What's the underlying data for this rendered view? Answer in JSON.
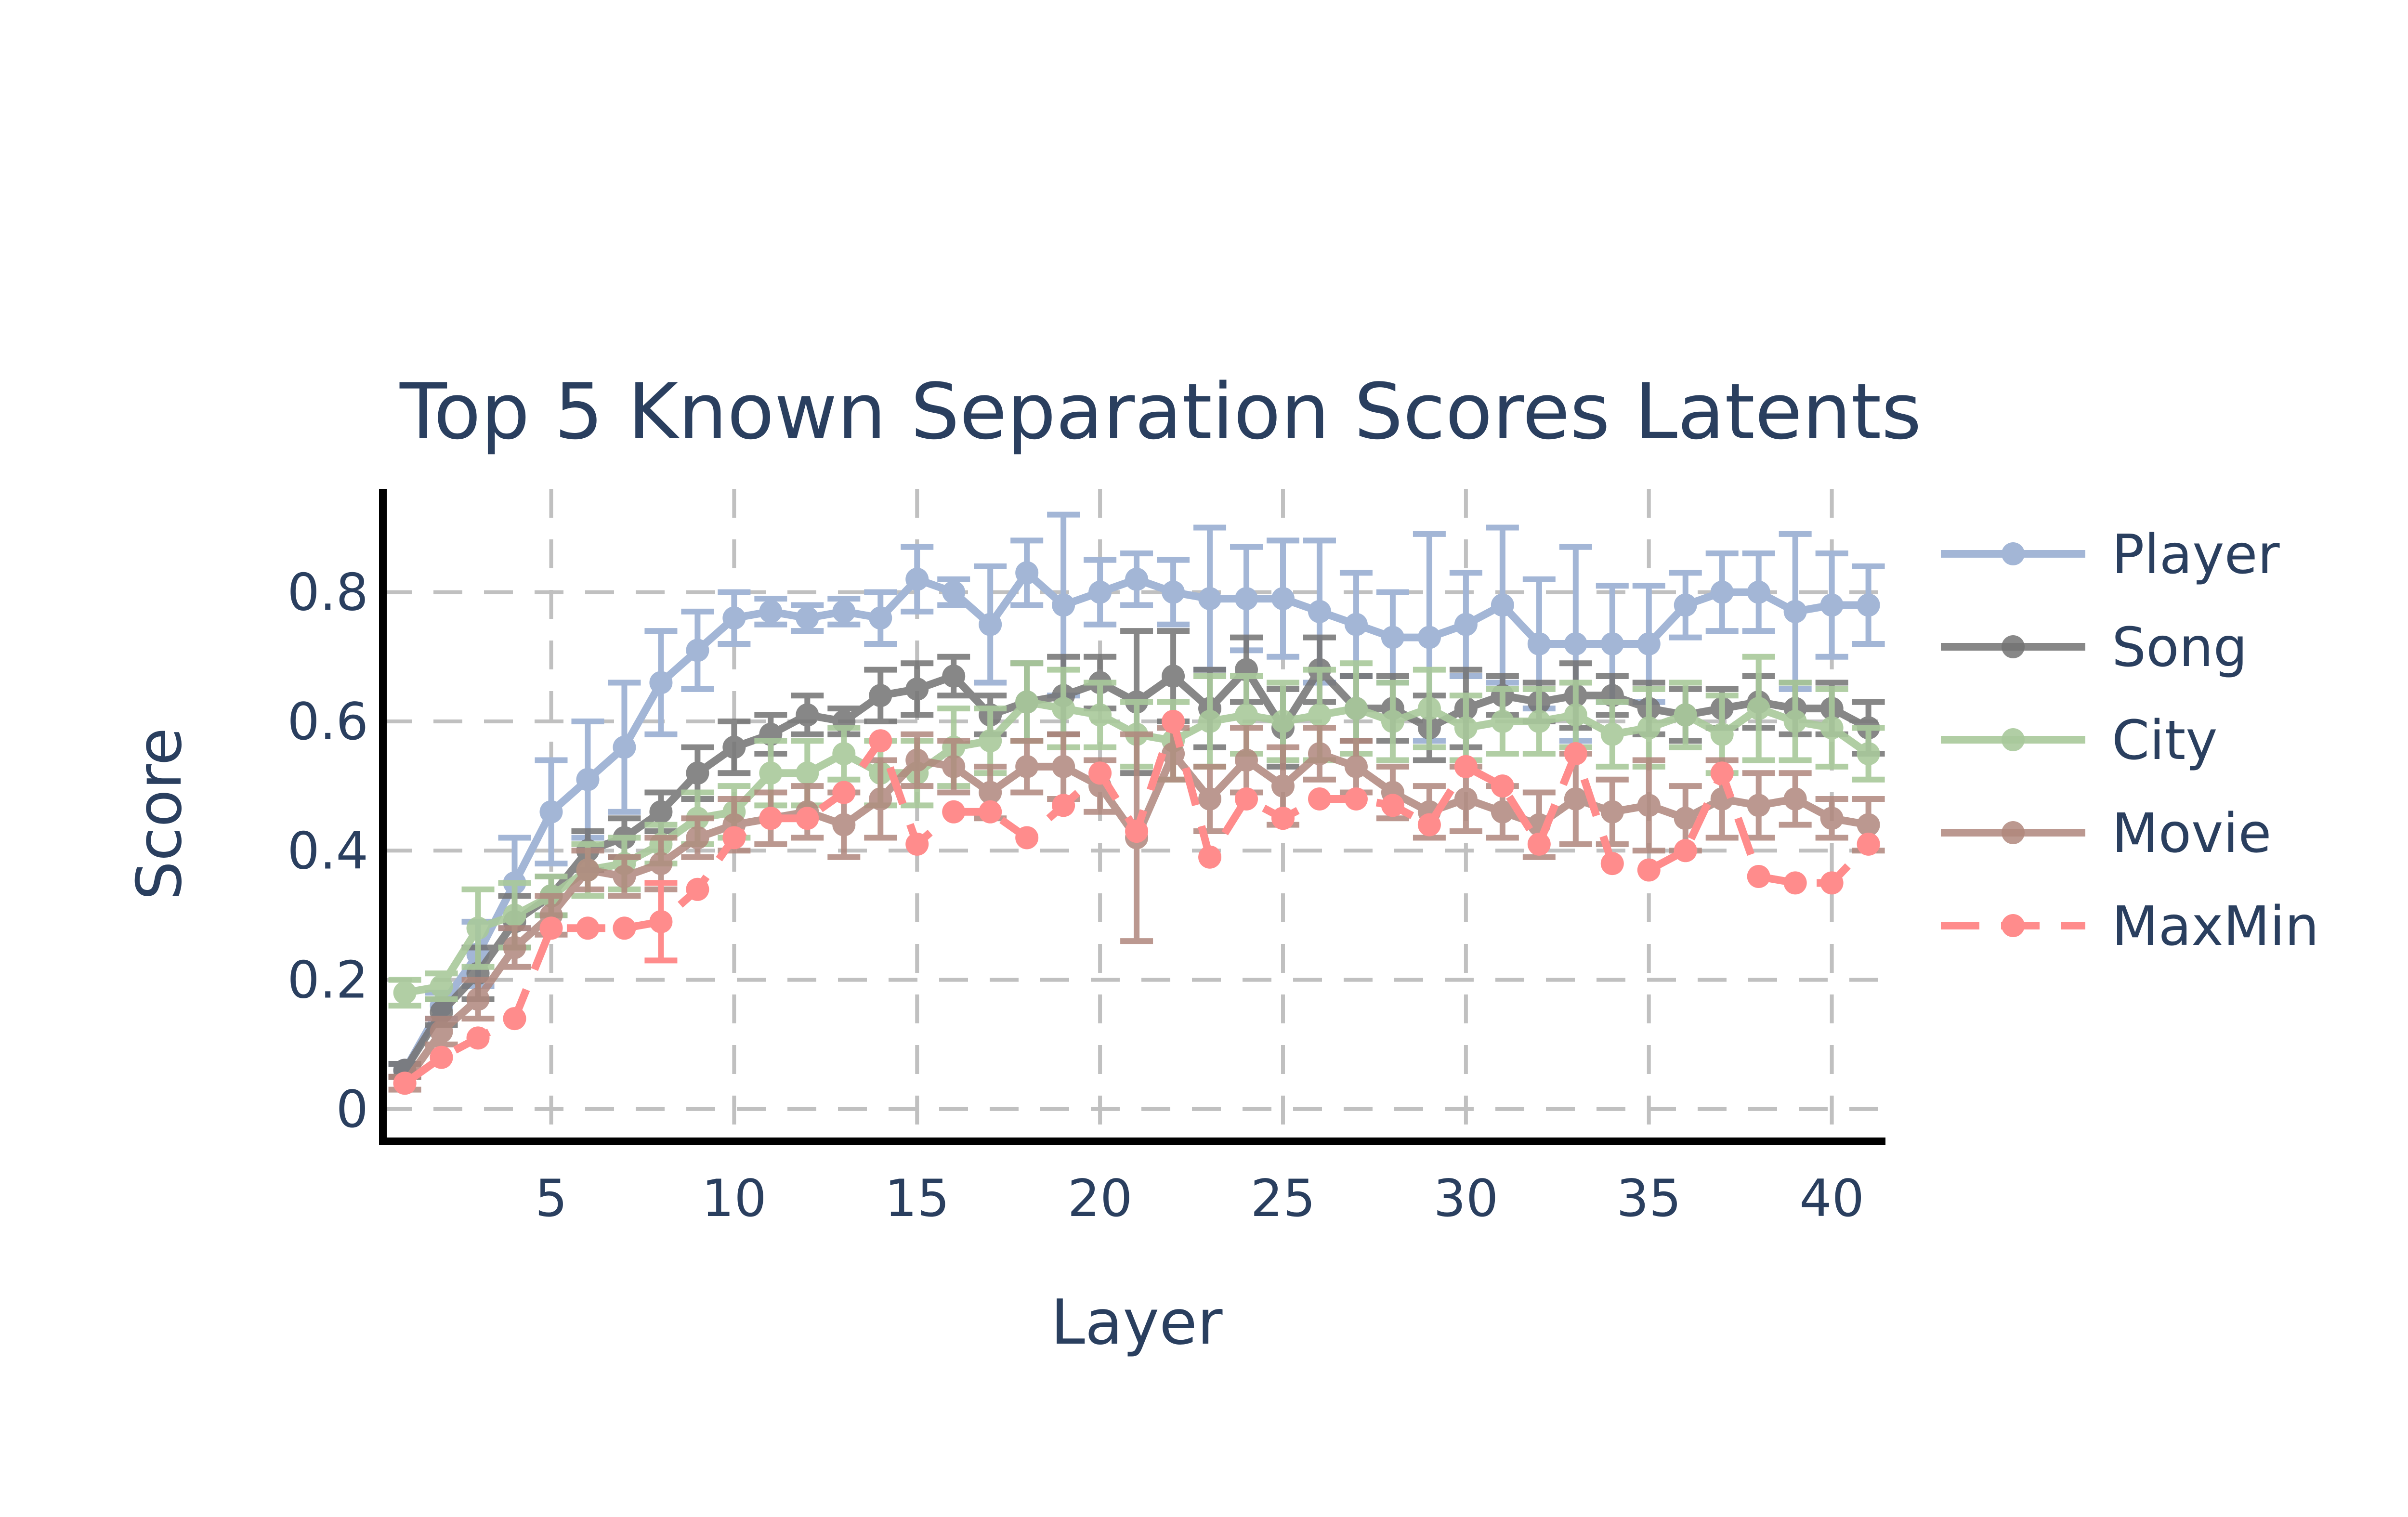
{
  "chart_data": {
    "type": "line",
    "title": "Top 5 Known Separation Scores Latents",
    "xlabel": "Layer",
    "ylabel": "Score",
    "xlim": [
      0.4,
      41.4
    ],
    "ylim": [
      -0.05,
      0.96
    ],
    "xticks": [
      5,
      10,
      15,
      20,
      25,
      30,
      35,
      40
    ],
    "xtick_labels": [
      "5",
      "10",
      "15",
      "20",
      "25",
      "30",
      "35",
      "40"
    ],
    "yticks": [
      0,
      0.2,
      0.4,
      0.6,
      0.8
    ],
    "ytick_labels": [
      "0",
      "0.2",
      "0.4",
      "0.6",
      "0.8"
    ],
    "grid": true,
    "legend": "right",
    "x": [
      1,
      2,
      3,
      4,
      5,
      6,
      7,
      8,
      9,
      10,
      11,
      12,
      13,
      14,
      15,
      16,
      17,
      18,
      19,
      20,
      21,
      22,
      23,
      24,
      25,
      26,
      27,
      28,
      29,
      30,
      31,
      32,
      33,
      34,
      35,
      36,
      37,
      38,
      39,
      40,
      41
    ],
    "series": [
      {
        "name": "Player",
        "color": "#a3b6d6",
        "dash": false,
        "opacity": 1,
        "values": [
          0.06,
          0.16,
          0.24,
          0.35,
          0.46,
          0.51,
          0.56,
          0.66,
          0.71,
          0.76,
          0.77,
          0.76,
          0.77,
          0.76,
          0.82,
          0.8,
          0.75,
          0.83,
          0.78,
          0.8,
          0.82,
          0.8,
          0.79,
          0.79,
          0.79,
          0.77,
          0.75,
          0.73,
          0.73,
          0.75,
          0.78,
          0.72,
          0.72,
          0.72,
          0.72,
          0.78,
          0.8,
          0.8,
          0.77,
          0.78,
          0.78
        ],
        "error": [
          0.01,
          0.02,
          0.05,
          0.07,
          0.08,
          0.09,
          0.1,
          0.08,
          0.06,
          0.04,
          0.02,
          0.02,
          0.02,
          0.04,
          0.05,
          0.02,
          0.09,
          0.05,
          0.14,
          0.05,
          0.04,
          0.05,
          0.11,
          0.08,
          0.09,
          0.11,
          0.08,
          0.07,
          0.16,
          0.08,
          0.12,
          0.1,
          0.15,
          0.09,
          0.09,
          0.05,
          0.06,
          0.06,
          0.12,
          0.08,
          0.06
        ]
      },
      {
        "name": "Song",
        "color": "#737373",
        "dash": false,
        "opacity": 0.85,
        "values": [
          0.06,
          0.15,
          0.21,
          0.29,
          0.33,
          0.4,
          0.42,
          0.46,
          0.52,
          0.56,
          0.58,
          0.61,
          0.6,
          0.64,
          0.65,
          0.67,
          0.61,
          0.63,
          0.64,
          0.66,
          0.63,
          0.67,
          0.62,
          0.68,
          0.59,
          0.68,
          0.62,
          0.62,
          0.59,
          0.62,
          0.64,
          0.63,
          0.64,
          0.64,
          0.62,
          0.61,
          0.62,
          0.63,
          0.62,
          0.62,
          0.59
        ],
        "error": [
          0.01,
          0.02,
          0.04,
          0.04,
          0.03,
          0.03,
          0.03,
          0.03,
          0.04,
          0.04,
          0.03,
          0.03,
          0.02,
          0.04,
          0.04,
          0.03,
          0.03,
          0.06,
          0.06,
          0.04,
          0.11,
          0.07,
          0.06,
          0.05,
          0.06,
          0.05,
          0.05,
          0.05,
          0.05,
          0.06,
          0.03,
          0.03,
          0.05,
          0.03,
          0.04,
          0.04,
          0.03,
          0.04,
          0.04,
          0.04,
          0.04
        ]
      },
      {
        "name": "City",
        "color": "#a9c99b",
        "dash": false,
        "opacity": 0.9,
        "values": [
          0.18,
          0.19,
          0.28,
          0.3,
          0.33,
          0.37,
          0.38,
          0.41,
          0.45,
          0.46,
          0.52,
          0.52,
          0.55,
          0.52,
          0.52,
          0.56,
          0.57,
          0.63,
          0.62,
          0.61,
          0.58,
          0.57,
          0.6,
          0.61,
          0.6,
          0.61,
          0.62,
          0.6,
          0.62,
          0.59,
          0.6,
          0.6,
          0.61,
          0.58,
          0.59,
          0.61,
          0.58,
          0.62,
          0.6,
          0.59,
          0.55
        ],
        "error": [
          0.02,
          0.02,
          0.06,
          0.05,
          0.03,
          0.04,
          0.04,
          0.03,
          0.04,
          0.04,
          0.05,
          0.05,
          0.04,
          0.05,
          0.05,
          0.06,
          0.05,
          0.06,
          0.06,
          0.05,
          0.05,
          0.06,
          0.07,
          0.06,
          0.06,
          0.07,
          0.07,
          0.06,
          0.06,
          0.05,
          0.05,
          0.05,
          0.05,
          0.05,
          0.06,
          0.05,
          0.06,
          0.08,
          0.06,
          0.06,
          0.04
        ]
      },
      {
        "name": "Movie",
        "color": "#b0877d",
        "dash": false,
        "opacity": 0.85,
        "values": [
          0.04,
          0.12,
          0.17,
          0.25,
          0.3,
          0.37,
          0.36,
          0.38,
          0.42,
          0.44,
          0.45,
          0.46,
          0.44,
          0.48,
          0.54,
          0.53,
          0.49,
          0.53,
          0.53,
          0.5,
          0.42,
          0.55,
          0.48,
          0.54,
          0.5,
          0.55,
          0.53,
          0.49,
          0.46,
          0.48,
          0.46,
          0.44,
          0.48,
          0.46,
          0.47,
          0.45,
          0.48,
          0.47,
          0.48,
          0.45,
          0.44
        ],
        "error": [
          0.01,
          0.02,
          0.03,
          0.03,
          0.03,
          0.03,
          0.03,
          0.04,
          0.03,
          0.04,
          0.04,
          0.04,
          0.05,
          0.06,
          0.04,
          0.04,
          0.04,
          0.04,
          0.05,
          0.04,
          0.16,
          0.04,
          0.05,
          0.05,
          0.06,
          0.04,
          0.04,
          0.04,
          0.04,
          0.05,
          0.04,
          0.05,
          0.07,
          0.05,
          0.07,
          0.05,
          0.06,
          0.05,
          0.04,
          0.03,
          0.04
        ]
      },
      {
        "name": "MaxMin",
        "color": "#ff8c8c",
        "dash": true,
        "opacity": 1,
        "values": [
          0.04,
          0.08,
          0.11,
          0.14,
          0.28,
          0.28,
          0.28,
          0.29,
          0.34,
          0.42,
          0.45,
          0.45,
          0.49,
          0.57,
          0.41,
          0.46,
          0.46,
          0.42,
          0.47,
          0.52,
          0.43,
          0.6,
          0.39,
          0.48,
          0.45,
          0.48,
          0.48,
          0.47,
          0.44,
          0.53,
          0.5,
          0.41,
          0.55,
          0.38,
          0.37,
          0.4,
          0.52,
          0.36,
          0.35,
          0.35,
          0.41
        ],
        "error": [
          0,
          0,
          0,
          0,
          0,
          0,
          0,
          0.06,
          0,
          0,
          0,
          0,
          0,
          0,
          0,
          0,
          0,
          0,
          0,
          0,
          0,
          0,
          0,
          0,
          0,
          0,
          0,
          0,
          0,
          0,
          0,
          0,
          0,
          0,
          0,
          0,
          0,
          0,
          0,
          0,
          0
        ]
      }
    ]
  }
}
